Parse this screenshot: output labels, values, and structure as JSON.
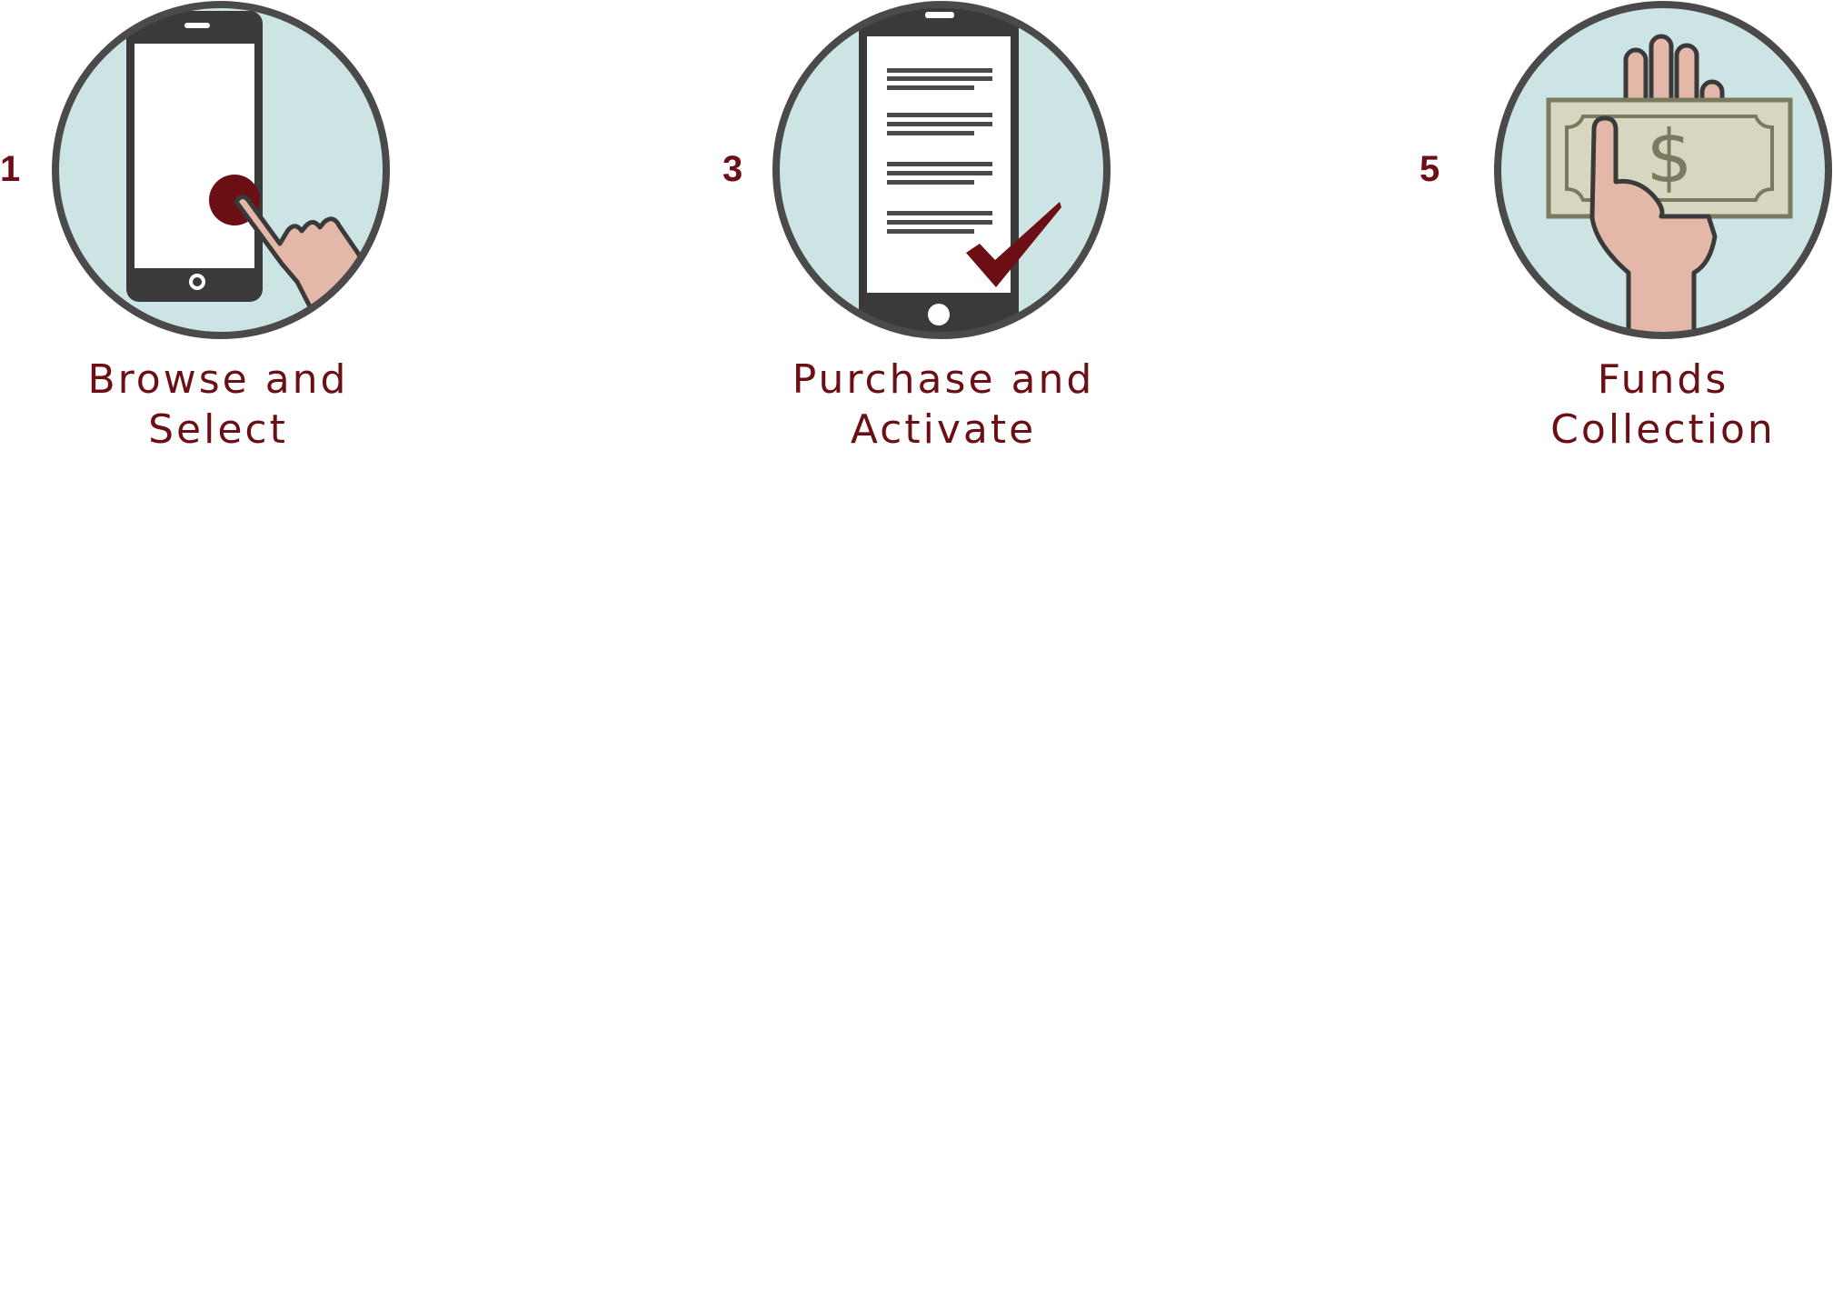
{
  "colors": {
    "accent": "#6b0f14",
    "circle_fill": "#cde4e4",
    "outline": "#4a4a4a",
    "skin": "#e3b8a8",
    "bill": "#d7d6c1",
    "bill_ink": "#7a7a5e"
  },
  "steps": [
    {
      "number": "1",
      "label_line1": "Browse and",
      "label_line2": "Select",
      "icon": "phone-tap-icon"
    },
    {
      "number": "3",
      "label_line1": "Purchase and",
      "label_line2": "Activate",
      "icon": "phone-document-check-icon"
    },
    {
      "number": "5",
      "label_line1": "Funds",
      "label_line2": "Collection",
      "icon": "hand-money-icon"
    }
  ]
}
